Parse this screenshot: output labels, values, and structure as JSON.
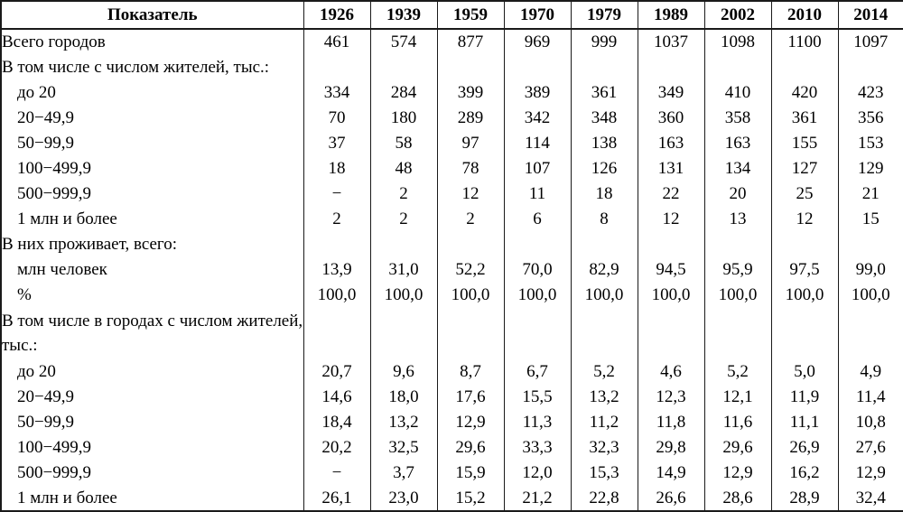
{
  "table": {
    "header": {
      "indicator_label": "Показатель",
      "years": [
        "1926",
        "1939",
        "1959",
        "1970",
        "1979",
        "1989",
        "2002",
        "2010",
        "2014"
      ]
    },
    "rows": [
      {
        "label": "Всего городов",
        "indent": false,
        "tall": false,
        "values": [
          "461",
          "574",
          "877",
          "969",
          "999",
          "1037",
          "1098",
          "1100",
          "1097"
        ]
      },
      {
        "label": "В том числе с числом жителей, тыс.:",
        "indent": false,
        "tall": false,
        "values": [
          "",
          "",
          "",
          "",
          "",
          "",
          "",
          "",
          ""
        ]
      },
      {
        "label": "до 20",
        "indent": true,
        "tall": false,
        "values": [
          "334",
          "284",
          "399",
          "389",
          "361",
          "349",
          "410",
          "420",
          "423"
        ]
      },
      {
        "label": "20−49,9",
        "indent": true,
        "tall": false,
        "values": [
          "70",
          "180",
          "289",
          "342",
          "348",
          "360",
          "358",
          "361",
          "356"
        ]
      },
      {
        "label": "50−99,9",
        "indent": true,
        "tall": false,
        "values": [
          "37",
          "58",
          "97",
          "114",
          "138",
          "163",
          "163",
          "155",
          "153"
        ]
      },
      {
        "label": "100−499,9",
        "indent": true,
        "tall": false,
        "values": [
          "18",
          "48",
          "78",
          "107",
          "126",
          "131",
          "134",
          "127",
          "129"
        ]
      },
      {
        "label": "500−999,9",
        "indent": true,
        "tall": false,
        "values": [
          "−",
          "2",
          "12",
          "11",
          "18",
          "22",
          "20",
          "25",
          "21"
        ]
      },
      {
        "label": "1 млн и более",
        "indent": true,
        "tall": false,
        "values": [
          "2",
          "2",
          "2",
          "6",
          "8",
          "12",
          "13",
          "12",
          "15"
        ]
      },
      {
        "label": "В них проживает, всего:",
        "indent": false,
        "tall": false,
        "values": [
          "",
          "",
          "",
          "",
          "",
          "",
          "",
          "",
          ""
        ]
      },
      {
        "label": "млн человек",
        "indent": true,
        "tall": false,
        "values": [
          "13,9",
          "31,0",
          "52,2",
          "70,0",
          "82,9",
          "94,5",
          "95,9",
          "97,5",
          "99,0"
        ]
      },
      {
        "label": "%",
        "indent": true,
        "tall": false,
        "values": [
          "100,0",
          "100,0",
          "100,0",
          "100,0",
          "100,0",
          "100,0",
          "100,0",
          "100,0",
          "100,0"
        ]
      },
      {
        "label": "В том числе в городах с числом жителей, тыс.:",
        "indent": false,
        "tall": true,
        "values": [
          "",
          "",
          "",
          "",
          "",
          "",
          "",
          "",
          ""
        ]
      },
      {
        "label": "до 20",
        "indent": true,
        "tall": false,
        "values": [
          "20,7",
          "9,6",
          "8,7",
          "6,7",
          "5,2",
          "4,6",
          "5,2",
          "5,0",
          "4,9"
        ]
      },
      {
        "label": "20−49,9",
        "indent": true,
        "tall": false,
        "values": [
          "14,6",
          "18,0",
          "17,6",
          "15,5",
          "13,2",
          "12,3",
          "12,1",
          "11,9",
          "11,4"
        ]
      },
      {
        "label": "50−99,9",
        "indent": true,
        "tall": false,
        "values": [
          "18,4",
          "13,2",
          "12,9",
          "11,3",
          "11,2",
          "11,8",
          "11,6",
          "11,1",
          "10,8"
        ]
      },
      {
        "label": "100−499,9",
        "indent": true,
        "tall": false,
        "values": [
          "20,2",
          "32,5",
          "29,6",
          "33,3",
          "32,3",
          "29,8",
          "29,6",
          "26,9",
          "27,6"
        ]
      },
      {
        "label": "500−999,9",
        "indent": true,
        "tall": false,
        "values": [
          "−",
          "3,7",
          "15,9",
          "12,0",
          "15,3",
          "14,9",
          "12,9",
          "16,2",
          "12,9"
        ]
      },
      {
        "label": "1 млн и более",
        "indent": true,
        "tall": false,
        "values": [
          "26,1",
          "23,0",
          "15,2",
          "21,2",
          "22,8",
          "26,6",
          "28,6",
          "28,9",
          "32,4"
        ]
      }
    ],
    "colors": {
      "border": "#1a1a1a",
      "text": "#000000",
      "background": "#ffffff"
    }
  }
}
